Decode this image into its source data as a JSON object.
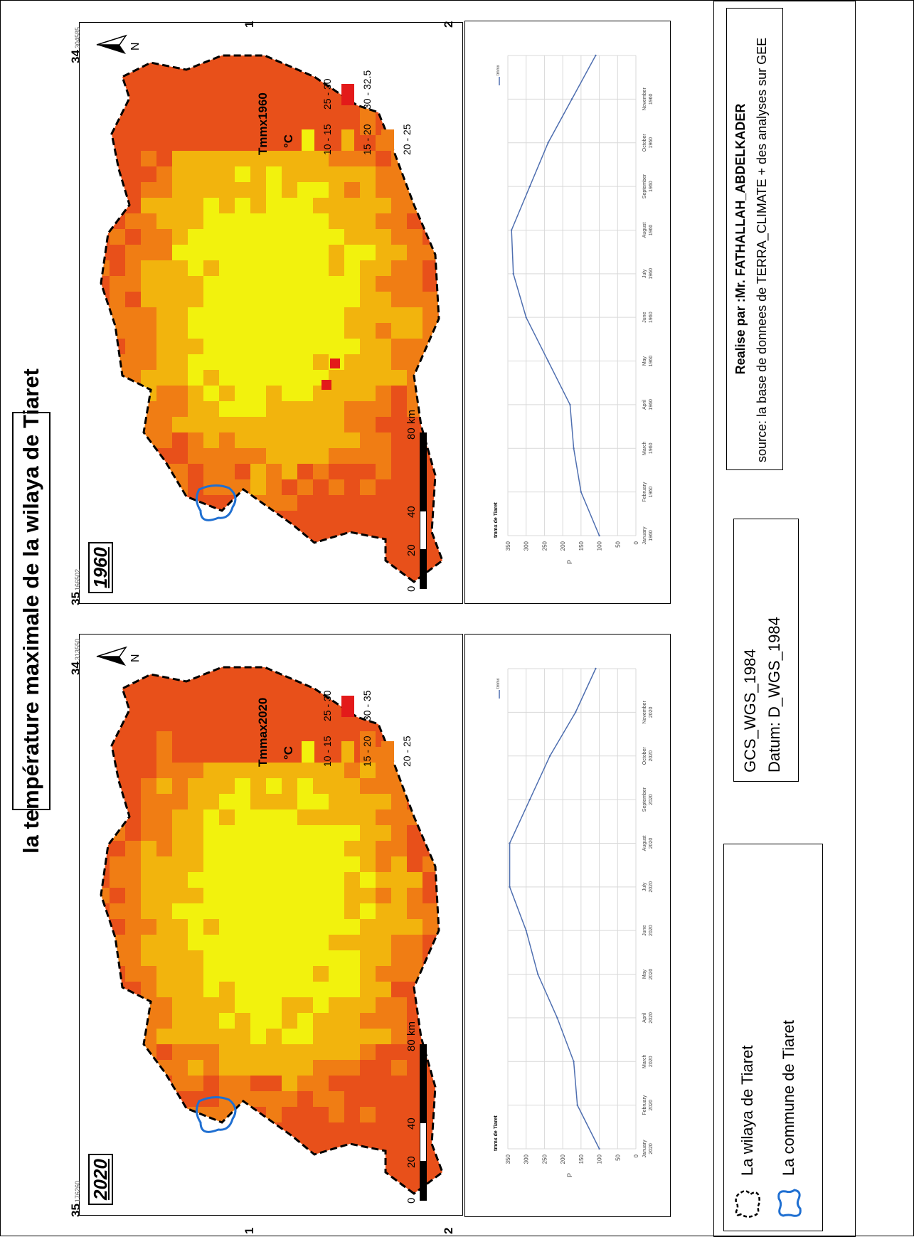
{
  "title": "la température maximale de la wilaya de Tiaret",
  "colors": {
    "class_10_15": "#f2f20d",
    "class_15_20": "#f2b40d",
    "class_20_25": "#f07d14",
    "class_25_30": "#e8501a",
    "class_30_plus": "#e31a1a",
    "wilaya_border": "#000000",
    "commune_border": "#1f6fd1",
    "chart_line": "#4f6fb0"
  },
  "panels": [
    {
      "year_label": "2020",
      "legend": {
        "title": "Tmmax2020",
        "unit": "°C",
        "classes": [
          "10 - 15",
          "15 - 20",
          "20 - 25",
          "25 - 30",
          "30 - 35"
        ]
      },
      "lat_labels": {
        "top": "35",
        "bottom": "34"
      },
      "lat_small": {
        "top": "176260",
        "bottom": "313550"
      },
      "lon_labels": {
        "left": "1",
        "right": "2"
      },
      "lon_small": {
        "left": "227450",
        "right": "076597"
      },
      "scale": {
        "unit": "km",
        "ticks": [
          "0",
          "20",
          "40",
          "80"
        ]
      },
      "chart": {
        "title": "tmmx de Tiaret",
        "ylabel": "P",
        "legend": "tmmx",
        "months": [
          "January 2020",
          "February 2020",
          "March 2020",
          "April 2020",
          "May 2020",
          "June 2020",
          "July 2020",
          "August 2020",
          "September 2020",
          "October 2020",
          "November 2020"
        ]
      }
    },
    {
      "year_label": "1960",
      "legend": {
        "title": "Tmmx1960",
        "unit": "°C",
        "classes": [
          "10 - 15",
          "15 - 20",
          "20 - 25",
          "25 - 30",
          "30 - 32.5"
        ]
      },
      "lat_labels": {
        "top": "35",
        "bottom": "34"
      },
      "lat_small": {
        "top": "166502",
        "bottom": "304585"
      },
      "lon_labels": {
        "left": "1",
        "right": "2"
      },
      "lon_small": {
        "left": "231718",
        "right": "084881"
      },
      "scale": {
        "unit": "km",
        "ticks": [
          "0",
          "20",
          "40",
          "80"
        ]
      },
      "chart": {
        "title": "tmmx de Tiaret",
        "ylabel": "P",
        "legend": "tmmx",
        "months": [
          "January 1960",
          "February 1960",
          "March 1960",
          "April 1960",
          "May 1960",
          "June 1960",
          "July 1960",
          "August 1960",
          "September 1960",
          "October 1960",
          "November 1960"
        ]
      }
    }
  ],
  "chart_data": [
    {
      "type": "line",
      "title": "tmmx de Tiaret",
      "ylabel": "P",
      "categories": [
        "January 2020",
        "February 2020",
        "March 2020",
        "April 2020",
        "May 2020",
        "June 2020",
        "July 2020",
        "August 2020",
        "September 2020",
        "October 2020",
        "November 2020",
        ""
      ],
      "series": [
        {
          "name": "tmmx",
          "values": [
            100,
            160,
            170,
            215,
            268,
            300,
            345,
            345,
            290,
            235,
            165,
            110
          ]
        }
      ],
      "yticks": [
        "0",
        "50",
        "100",
        "150",
        "200",
        "250",
        "300",
        "350"
      ],
      "ylim": [
        0,
        350
      ],
      "grid": true,
      "legend_position": "top-right"
    },
    {
      "type": "line",
      "title": "tmmx de Tiaret",
      "ylabel": "P",
      "categories": [
        "January 1960",
        "February 1960",
        "March 1960",
        "April 1960",
        "May 1960",
        "June 1960",
        "July 1960",
        "August 1960",
        "September 1960",
        "October 1960",
        "November 1960",
        ""
      ],
      "series": [
        {
          "name": "tmmx",
          "values": [
            100,
            150,
            170,
            180,
            240,
            300,
            335,
            340,
            290,
            240,
            175,
            110
          ]
        }
      ],
      "yticks": [
        "0",
        "50",
        "100",
        "150",
        "200",
        "250",
        "300",
        "350"
      ],
      "ylim": [
        0,
        350
      ],
      "grid": true,
      "legend_position": "top-right"
    }
  ],
  "bottom": {
    "legend_items": [
      "La wilaya de Tiaret",
      "La commune de Tiaret"
    ],
    "crs": "GCS_WGS_1984",
    "datum": "Datum: D_WGS_1984",
    "author": "Realise par :Mr. FATHALLAH_ABDELKADER",
    "source": "source: la base de donnees de TERRA_CLIMATE + des analyses sur GEE"
  }
}
